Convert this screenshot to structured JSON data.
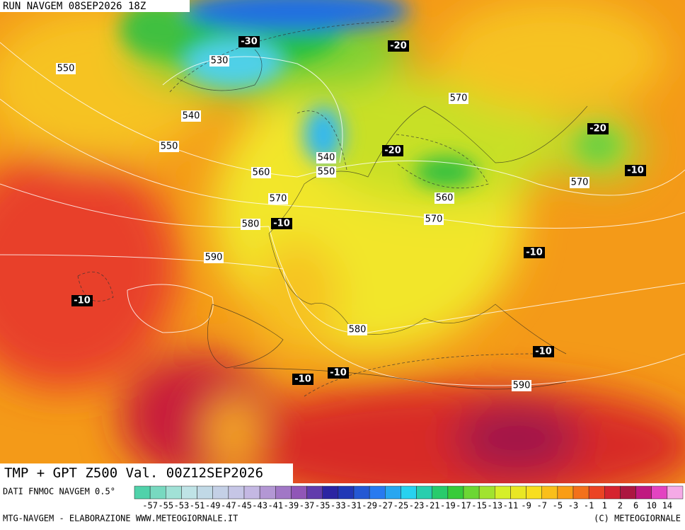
{
  "header": {
    "run": "RUN NAVGEM 08SEP2026 18Z"
  },
  "map": {
    "title": "TMP + GPT Z500 Val. 00Z12SEP2026",
    "z500_labels": [
      550,
      530,
      540,
      550,
      540,
      550,
      560,
      570,
      580,
      590,
      570,
      560,
      570,
      570,
      580,
      590
    ],
    "temperature_labels": [
      -30,
      -20,
      -20,
      -20,
      -10,
      -10,
      -10,
      -10,
      -10,
      -10,
      -10
    ]
  },
  "legend": {
    "source": "DATI FNMOC NAVGEM 0.5°",
    "scale": [
      -57,
      -55,
      -53,
      -51,
      -49,
      -47,
      -45,
      -43,
      -41,
      -39,
      -37,
      -35,
      -33,
      -31,
      -29,
      -27,
      -25,
      -23,
      -21,
      -19,
      -17,
      -15,
      -13,
      -11,
      -9,
      -7,
      -5,
      -3,
      -1,
      1,
      2,
      6,
      10,
      14
    ]
  },
  "footer": {
    "left": "MTG-NAVGEM - ELABORAZIONE WWW.METEOGIORNALE.IT",
    "right": "(C) METEOGIORNALE"
  }
}
